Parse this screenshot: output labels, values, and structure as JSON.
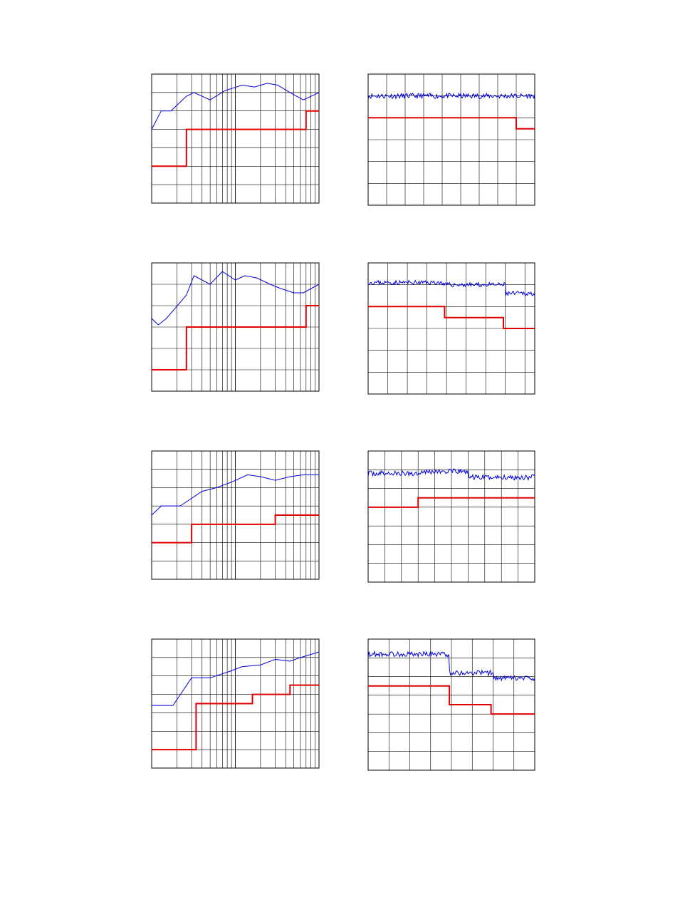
{
  "figure": {
    "background": "#ffffff"
  },
  "colors": {
    "step": "#e00000",
    "noisy": "#0000dd",
    "frame": "#000000",
    "grid": "#000000"
  },
  "chart_data": [
    {
      "type": "line",
      "x_scale": "log",
      "xlim": [
        1,
        100
      ],
      "ylim": [
        0,
        7
      ],
      "grid": true,
      "series": [
        {
          "color": "#0000dd",
          "x": [
            1,
            1.3,
            1.7,
            2.6,
            3.2,
            5,
            7.5,
            12,
            17,
            24,
            32,
            45,
            65,
            100
          ],
          "y": [
            4.0,
            5.0,
            5.0,
            5.8,
            6.0,
            5.6,
            6.1,
            6.4,
            6.3,
            6.5,
            6.4,
            6.0,
            5.6,
            6.0
          ]
        },
        {
          "color": "#e00000",
          "kind": "step",
          "x": [
            1,
            2.6,
            2.6,
            70,
            70,
            100
          ],
          "y": [
            2.0,
            2.0,
            4.0,
            4.0,
            5.0,
            5.0
          ]
        }
      ]
    },
    {
      "type": "line",
      "x_scale": "linear",
      "xlim": [
        0,
        9
      ],
      "ylim": [
        0,
        6
      ],
      "grid": true,
      "series": [
        {
          "color": "#0000dd",
          "kind": "noisy",
          "x_range": [
            0,
            9
          ],
          "level_segments": [
            [
              0,
              9,
              5.0
            ]
          ],
          "noise": 0.12,
          "seed": 11
        },
        {
          "color": "#e00000",
          "kind": "step",
          "x": [
            0,
            8,
            8,
            9
          ],
          "y": [
            4.0,
            4.0,
            3.5,
            3.5
          ]
        }
      ]
    },
    {
      "type": "line",
      "x_scale": "log",
      "xlim": [
        1,
        100
      ],
      "ylim": [
        0,
        6
      ],
      "grid": true,
      "series": [
        {
          "color": "#0000dd",
          "x": [
            1,
            1.2,
            1.5,
            2.6,
            3.2,
            5,
            7,
            10,
            13,
            18,
            26,
            35,
            50,
            65,
            100
          ],
          "y": [
            3.4,
            3.1,
            3.4,
            4.5,
            5.4,
            5.0,
            5.6,
            5.2,
            5.4,
            5.3,
            5.0,
            4.8,
            4.6,
            4.6,
            5.0
          ]
        },
        {
          "color": "#e00000",
          "kind": "step",
          "x": [
            1,
            2.6,
            2.6,
            70,
            70,
            100
          ],
          "y": [
            1.0,
            1.0,
            3.0,
            3.0,
            4.0,
            4.0
          ]
        }
      ]
    },
    {
      "type": "line",
      "x_scale": "linear",
      "xlim": [
        0,
        8.5
      ],
      "ylim": [
        0,
        6
      ],
      "grid": true,
      "series": [
        {
          "color": "#0000dd",
          "kind": "noisy",
          "x_range": [
            0,
            8.5
          ],
          "level_segments": [
            [
              0,
              3.8,
              5.1
            ],
            [
              3.8,
              7,
              5.0
            ],
            [
              7,
              8.5,
              4.6
            ]
          ],
          "noise": 0.1,
          "seed": 23
        },
        {
          "color": "#e00000",
          "kind": "step",
          "x": [
            0,
            3.9,
            3.9,
            6.9,
            6.9,
            8.5
          ],
          "y": [
            4.0,
            4.0,
            3.5,
            3.5,
            3.0,
            3.0
          ]
        }
      ]
    },
    {
      "type": "line",
      "x_scale": "log",
      "xlim": [
        1,
        100
      ],
      "ylim": [
        0,
        7
      ],
      "grid": true,
      "series": [
        {
          "color": "#0000dd",
          "x": [
            1,
            1.3,
            2.2,
            4,
            6,
            9,
            14,
            20,
            30,
            45,
            65,
            100
          ],
          "y": [
            3.5,
            4.0,
            4.0,
            4.8,
            5.0,
            5.3,
            5.7,
            5.6,
            5.4,
            5.6,
            5.7,
            5.7
          ]
        },
        {
          "color": "#e00000",
          "kind": "step",
          "x": [
            1,
            3,
            3,
            30,
            30,
            100
          ],
          "y": [
            2.0,
            2.0,
            3.0,
            3.0,
            3.5,
            3.5
          ]
        }
      ]
    },
    {
      "type": "line",
      "x_scale": "linear",
      "xlim": [
        0,
        10
      ],
      "ylim": [
        0,
        7
      ],
      "grid": true,
      "series": [
        {
          "color": "#0000dd",
          "kind": "noisy",
          "x_range": [
            0,
            10
          ],
          "level_segments": [
            [
              0,
              3,
              5.8
            ],
            [
              3,
              6,
              5.9
            ],
            [
              6,
              10,
              5.6
            ]
          ],
          "noise": 0.14,
          "seed": 37
        },
        {
          "color": "#e00000",
          "kind": "step",
          "x": [
            0,
            3,
            3,
            10
          ],
          "y": [
            4.0,
            4.0,
            4.5,
            4.5
          ]
        }
      ]
    },
    {
      "type": "line",
      "x_scale": "log",
      "xlim": [
        1,
        100
      ],
      "ylim": [
        0,
        7
      ],
      "grid": true,
      "series": [
        {
          "color": "#0000dd",
          "x": [
            1,
            1.8,
            3,
            5,
            8,
            12,
            20,
            30,
            45,
            60,
            100
          ],
          "y": [
            3.4,
            3.4,
            4.9,
            4.9,
            5.2,
            5.5,
            5.6,
            5.9,
            5.8,
            6.0,
            6.3
          ]
        },
        {
          "color": "#e00000",
          "kind": "step",
          "x": [
            1,
            3.4,
            3.4,
            16,
            16,
            45,
            45,
            100
          ],
          "y": [
            1.0,
            1.0,
            3.5,
            3.5,
            4.0,
            4.0,
            4.5,
            4.5
          ]
        }
      ]
    },
    {
      "type": "line",
      "x_scale": "linear",
      "xlim": [
        0,
        8
      ],
      "ylim": [
        0,
        7
      ],
      "grid": true,
      "series": [
        {
          "color": "#0000dd",
          "kind": "noisy",
          "x_range": [
            0,
            8
          ],
          "level_segments": [
            [
              0,
              3.9,
              6.2
            ],
            [
              3.9,
              6,
              5.2
            ],
            [
              6,
              8,
              4.9
            ]
          ],
          "noise": 0.14,
          "seed": 53
        },
        {
          "color": "#e00000",
          "kind": "step",
          "x": [
            0,
            3.9,
            3.9,
            5.9,
            5.9,
            8
          ],
          "y": [
            4.5,
            4.5,
            3.5,
            3.5,
            3.0,
            3.0
          ]
        }
      ]
    }
  ]
}
